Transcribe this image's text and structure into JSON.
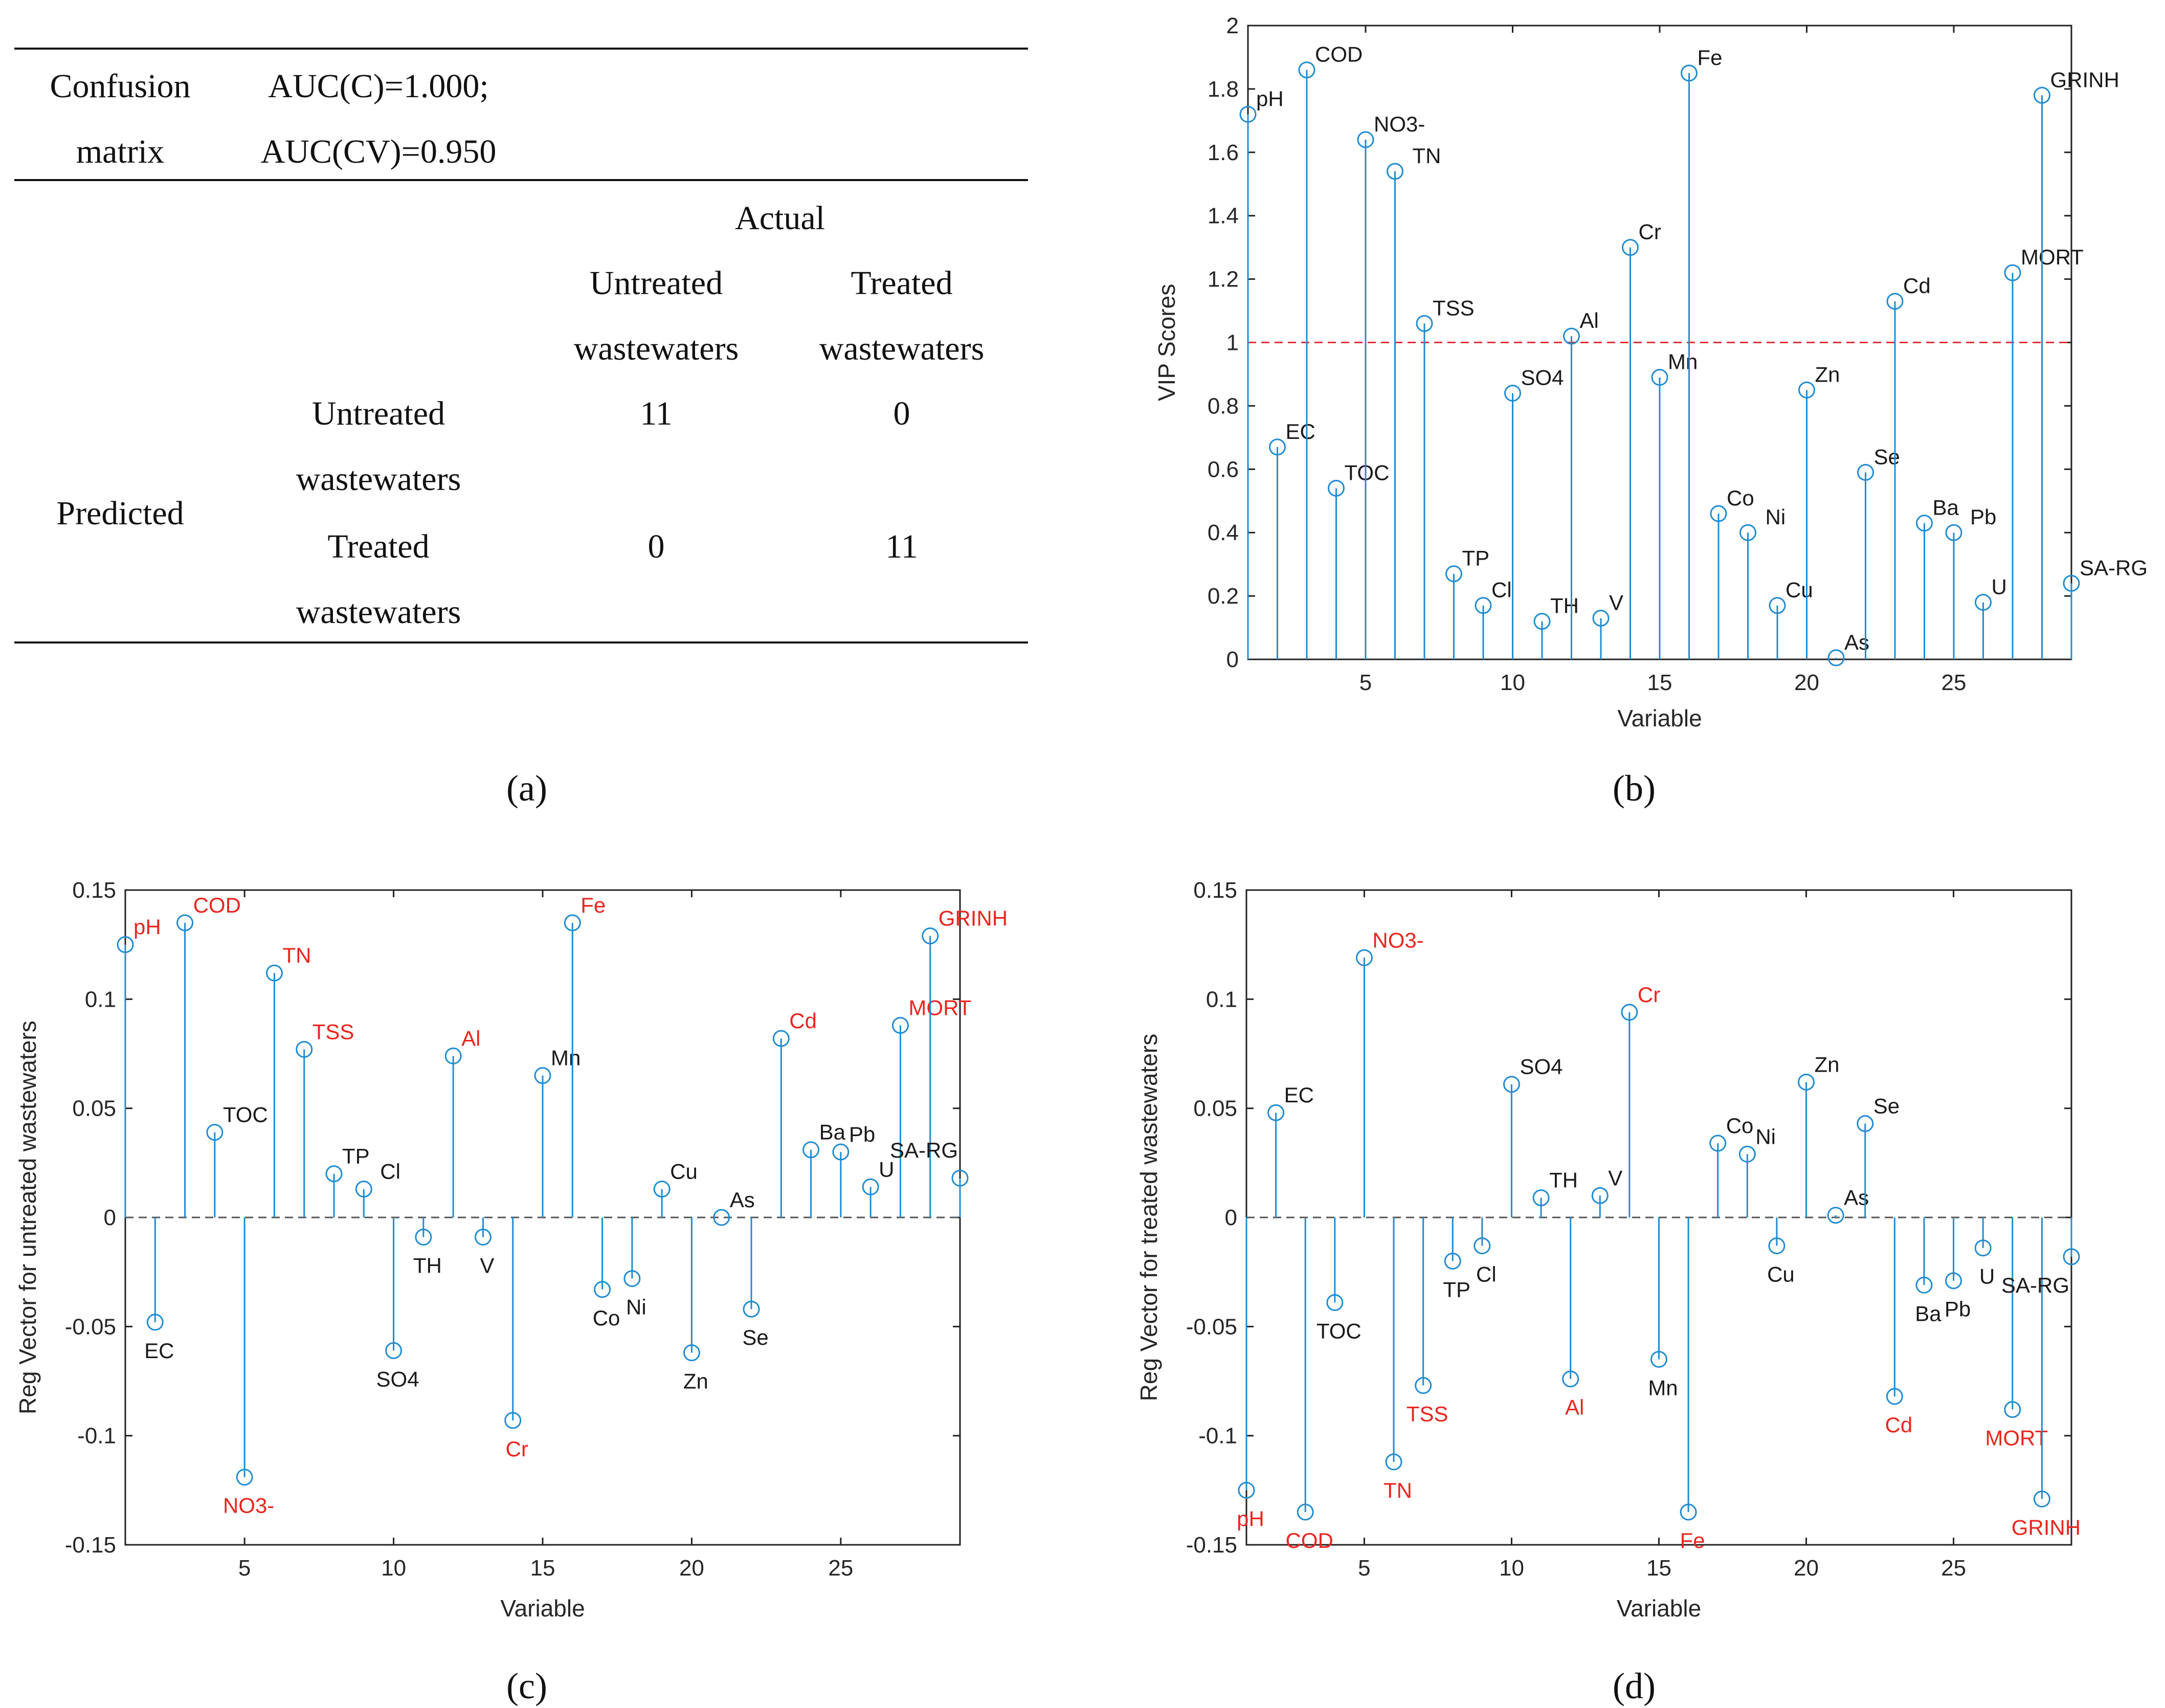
{
  "panel_a": {
    "caption": "(a)",
    "header_left": "Confusion\nmatrix",
    "header_right": "AUC(C)=1.000;\nAUC(CV)=0.950",
    "actual_label": "Actual",
    "col_untreated": "Untreated\nwastewaters",
    "col_treated": "Treated\nwastewaters",
    "predicted_label": "Predicted",
    "row_untreated": "Untreated\nwastewaters",
    "row_treated": "Treated\nwastewaters",
    "values": [
      [
        "11",
        "0"
      ],
      [
        "0",
        "11"
      ]
    ]
  },
  "chart_data": [
    {
      "id": "b",
      "caption": "(b)",
      "type": "stem",
      "xlabel": "Variable",
      "ylabel": "VIP Scores",
      "xlim": [
        1,
        29
      ],
      "ylim": [
        0,
        2
      ],
      "xticks": [
        5,
        10,
        15,
        20,
        25
      ],
      "yticks": [
        0,
        0.2,
        0.4,
        0.6,
        0.8,
        1,
        1.2,
        1.4,
        1.6,
        1.8,
        2
      ],
      "ytick_labels": [
        "0",
        "0.2",
        "0.4",
        "0.6",
        "0.8",
        "1",
        "1.2",
        "1.4",
        "1.6",
        "1.8",
        "2"
      ],
      "reference_line": 1,
      "reference_color": "#e0303a",
      "stem_color": "#1f8bd1",
      "x": [
        1,
        2,
        3,
        4,
        5,
        6,
        7,
        8,
        9,
        10,
        11,
        12,
        13,
        14,
        15,
        16,
        17,
        18,
        19,
        20,
        21,
        22,
        23,
        24,
        25,
        26,
        27,
        28,
        29
      ],
      "labels": [
        "pH",
        "EC",
        "COD",
        "TOC",
        "NO3-",
        "TN",
        "TSS",
        "TP",
        "Cl",
        "SO4",
        "TH",
        "Al",
        "V",
        "Cr",
        "Mn",
        "Fe",
        "Co",
        "Ni",
        "Cu",
        "Zn",
        "As",
        "Se",
        "Cd",
        "Ba",
        "Pb",
        "U",
        "MORT",
        "GRINH",
        "SA-RG"
      ],
      "values": [
        1.72,
        0.67,
        1.86,
        0.54,
        1.64,
        1.54,
        1.06,
        0.27,
        0.17,
        0.84,
        0.12,
        1.02,
        0.13,
        1.3,
        0.89,
        1.85,
        0.46,
        0.4,
        0.17,
        0.85,
        0.005,
        0.59,
        1.13,
        0.43,
        0.4,
        0.18,
        1.22,
        1.78,
        0.24
      ]
    },
    {
      "id": "c",
      "caption": "(c)",
      "type": "stem",
      "xlabel": "Variable",
      "ylabel": "Reg Vector for untreated wastewaters",
      "xlim": [
        1,
        29
      ],
      "ylim": [
        -0.15,
        0.15
      ],
      "xticks": [
        5,
        10,
        15,
        20,
        25
      ],
      "yticks": [
        -0.15,
        -0.1,
        -0.05,
        0,
        0.05,
        0.1,
        0.15
      ],
      "ytick_labels": [
        "-0.15",
        "-0.1",
        "-0.05",
        "0",
        "0.05",
        "0.1",
        "0.15"
      ],
      "reference_line": 0,
      "reference_color": "#555555",
      "stem_color": "#1f8bd1",
      "highlight_color": "#e8261f",
      "x": [
        1,
        2,
        3,
        4,
        5,
        6,
        7,
        8,
        9,
        10,
        11,
        12,
        13,
        14,
        15,
        16,
        17,
        18,
        19,
        20,
        21,
        22,
        23,
        24,
        25,
        26,
        27,
        28,
        29
      ],
      "labels": [
        "pH",
        "EC",
        "COD",
        "TOC",
        "NO3-",
        "TN",
        "TSS",
        "TP",
        "Cl",
        "SO4",
        "TH",
        "Al",
        "V",
        "Cr",
        "Mn",
        "Fe",
        "Co",
        "Ni",
        "Cu",
        "Zn",
        "As",
        "Se",
        "Cd",
        "Ba",
        "Pb",
        "U",
        "MORT",
        "GRINH",
        "SA-RG"
      ],
      "values": [
        0.125,
        -0.048,
        0.135,
        0.039,
        -0.119,
        0.112,
        0.077,
        0.02,
        0.013,
        -0.061,
        -0.009,
        0.074,
        -0.009,
        -0.093,
        0.065,
        0.135,
        -0.033,
        -0.028,
        0.013,
        -0.062,
        0,
        -0.042,
        0.082,
        0.031,
        0.03,
        0.014,
        0.088,
        0.129,
        0.018
      ],
      "highlighted": [
        true,
        false,
        true,
        false,
        true,
        true,
        true,
        false,
        false,
        false,
        false,
        true,
        false,
        true,
        false,
        true,
        false,
        false,
        false,
        false,
        false,
        false,
        true,
        false,
        false,
        false,
        true,
        true,
        false
      ]
    },
    {
      "id": "d",
      "caption": "(d)",
      "type": "stem",
      "xlabel": "Variable",
      "ylabel": "Reg Vector for treated wastewaters",
      "xlim": [
        1,
        29
      ],
      "ylim": [
        -0.15,
        0.15
      ],
      "xticks": [
        5,
        10,
        15,
        20,
        25
      ],
      "yticks": [
        -0.15,
        -0.1,
        -0.05,
        0,
        0.05,
        0.1,
        0.15
      ],
      "ytick_labels": [
        "-0.15",
        "-0.1",
        "-0.05",
        "0",
        "0.05",
        "0.1",
        "0.15"
      ],
      "reference_line": 0,
      "reference_color": "#555555",
      "stem_color": "#1f8bd1",
      "highlight_color": "#e8261f",
      "x": [
        1,
        2,
        3,
        4,
        5,
        6,
        7,
        8,
        9,
        10,
        11,
        12,
        13,
        14,
        15,
        16,
        17,
        18,
        19,
        20,
        21,
        22,
        23,
        24,
        25,
        26,
        27,
        28,
        29
      ],
      "labels": [
        "pH",
        "EC",
        "COD",
        "TOC",
        "NO3-",
        "TN",
        "TSS",
        "TP",
        "Cl",
        "SO4",
        "TH",
        "Al",
        "V",
        "Cr",
        "Mn",
        "Fe",
        "Co",
        "Ni",
        "Cu",
        "Zn",
        "As",
        "Se",
        "Cd",
        "Ba",
        "Pb",
        "U",
        "MORT",
        "GRINH",
        "SA-RG"
      ],
      "values": [
        -0.125,
        0.048,
        -0.135,
        -0.039,
        0.119,
        -0.112,
        -0.077,
        -0.02,
        -0.013,
        0.061,
        0.009,
        -0.074,
        0.01,
        0.094,
        -0.065,
        -0.135,
        0.034,
        0.029,
        -0.013,
        0.062,
        0.001,
        0.043,
        -0.082,
        -0.031,
        -0.029,
        -0.014,
        -0.088,
        -0.129,
        -0.018
      ],
      "highlighted": [
        true,
        false,
        true,
        false,
        true,
        true,
        true,
        false,
        false,
        false,
        false,
        true,
        false,
        true,
        false,
        true,
        false,
        false,
        false,
        false,
        false,
        false,
        true,
        false,
        false,
        false,
        true,
        true,
        false
      ]
    }
  ]
}
